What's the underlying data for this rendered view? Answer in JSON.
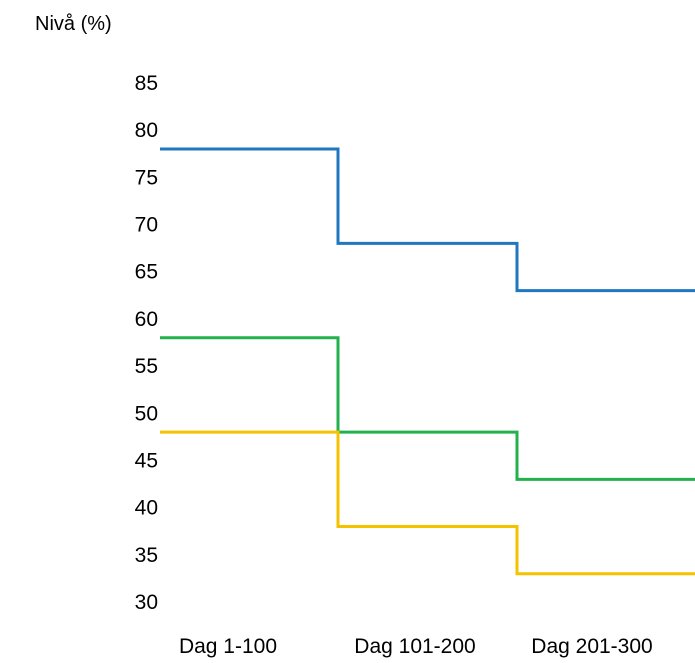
{
  "chart_data": {
    "type": "line",
    "step": true,
    "ylabel": "Nivå (%)",
    "categories": [
      "Dag 1-100",
      "Dag 101-200",
      "Dag 201-300"
    ],
    "yticks": [
      30,
      35,
      40,
      45,
      50,
      55,
      60,
      65,
      70,
      75,
      80,
      85
    ],
    "ylim": [
      30,
      85
    ],
    "grid": false,
    "legend": "none",
    "series": [
      {
        "values": [
          78,
          68,
          63
        ],
        "color": "#1f77c0"
      },
      {
        "values": [
          58,
          48,
          43
        ],
        "color": "#22b14c"
      },
      {
        "values": [
          48,
          38,
          33
        ],
        "color": "#f5c200"
      }
    ]
  }
}
